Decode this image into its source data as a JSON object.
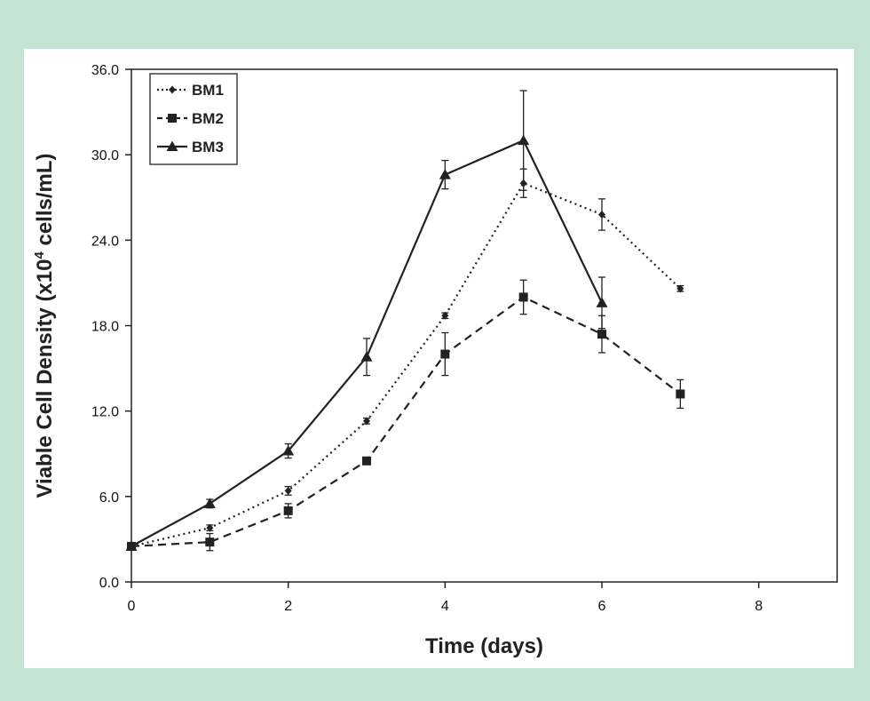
{
  "chart_data": {
    "type": "line",
    "title": "",
    "xlabel": "Time (days)",
    "ylabel_main": "Viable Cell Density (x10",
    "ylabel_sup": "4",
    "ylabel_tail": " cells/mL)",
    "xlim": [
      0,
      9
    ],
    "ylim": [
      0,
      36
    ],
    "xticks": [
      0,
      2,
      4,
      6,
      8
    ],
    "xtick_labels": [
      "0",
      "2",
      "4",
      "6",
      "8"
    ],
    "yticks": [
      0,
      6,
      12,
      18,
      24,
      30,
      36
    ],
    "ytick_labels": [
      "0.0",
      "6.0",
      "12.0",
      "18.0",
      "24.0",
      "30.0",
      "36.0"
    ],
    "grid": false,
    "legend_position": "top-left",
    "series": [
      {
        "name": "BM1",
        "line_style": "dotted",
        "marker": "diamond",
        "x": [
          0,
          1,
          2,
          3,
          4,
          5,
          6,
          7
        ],
        "values": [
          2.5,
          3.8,
          6.4,
          11.3,
          18.7,
          28.0,
          25.8,
          20.6
        ],
        "errors": [
          0.2,
          0.2,
          0.3,
          0.2,
          0.2,
          1.0,
          1.1,
          0.2
        ]
      },
      {
        "name": "BM2",
        "line_style": "dashed",
        "marker": "square",
        "x": [
          0,
          1,
          2,
          3,
          4,
          5,
          6,
          7
        ],
        "values": [
          2.5,
          2.8,
          5.0,
          8.5,
          16.0,
          20.0,
          17.4,
          13.2
        ],
        "errors": [
          0.2,
          0.6,
          0.5,
          0.2,
          1.5,
          1.2,
          1.3,
          1.0
        ]
      },
      {
        "name": "BM3",
        "line_style": "solid",
        "marker": "triangle",
        "x": [
          0,
          1,
          2,
          3,
          4,
          5,
          6
        ],
        "values": [
          2.5,
          5.5,
          9.2,
          15.8,
          28.6,
          31.0,
          19.6
        ],
        "errors": [
          0.2,
          0.3,
          0.5,
          1.3,
          1.0,
          3.5,
          1.8
        ]
      }
    ]
  }
}
